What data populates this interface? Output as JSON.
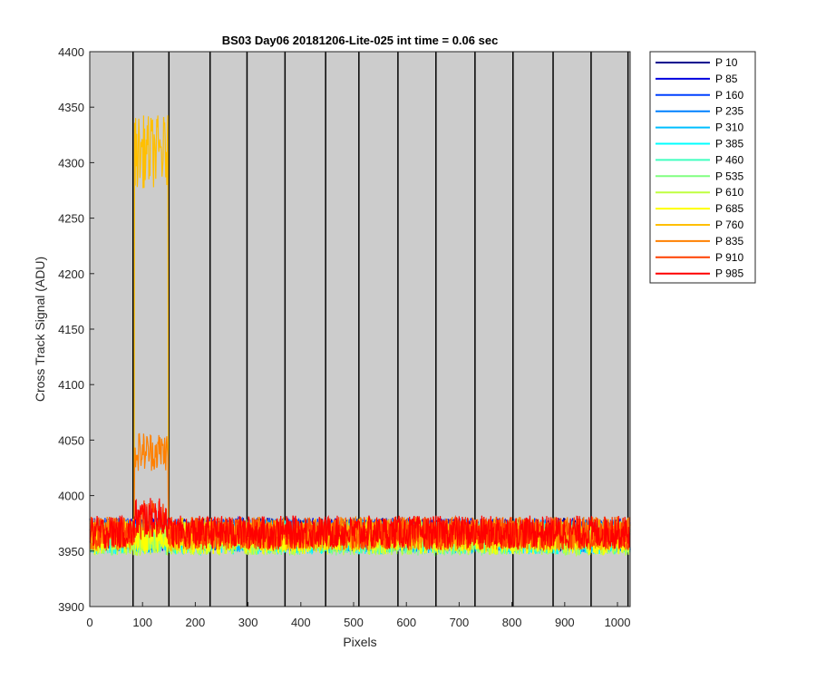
{
  "chart_data": {
    "type": "line",
    "title": "BS03 Day06 20181206-Lite-025 int time = 0.06 sec",
    "xlabel": "Pixels",
    "ylabel": "Cross Track Signal (ADU)",
    "xlim": [
      0,
      1024
    ],
    "ylim": [
      3900,
      4400
    ],
    "xticks": [
      0,
      100,
      200,
      300,
      400,
      500,
      600,
      700,
      800,
      900,
      1000
    ],
    "yticks": [
      3900,
      3950,
      4000,
      4050,
      4100,
      4150,
      4200,
      4250,
      4300,
      4350,
      4400
    ],
    "background": "#cccccc",
    "grid": false,
    "legend_position": "outside-top-right",
    "vertical_lines_x": [
      82,
      150,
      228,
      298,
      370,
      447,
      510,
      584,
      656,
      730,
      802,
      878,
      950,
      1020
    ],
    "baseline": 3965,
    "noise_amplitude": 15,
    "series": [
      {
        "name": "P 10",
        "color": "#00008f",
        "baseline": 3965,
        "plateau": null
      },
      {
        "name": "P 85",
        "color": "#0000df",
        "baseline": 3965,
        "plateau": null
      },
      {
        "name": "P 160",
        "color": "#0040ff",
        "baseline": 3965,
        "plateau": null
      },
      {
        "name": "P 235",
        "color": "#0080ff",
        "baseline": 3964,
        "plateau": null
      },
      {
        "name": "P 310",
        "color": "#00bfff",
        "baseline": 3963,
        "plateau": null
      },
      {
        "name": "P 385",
        "color": "#00ffff",
        "baseline": 3962,
        "plateau": null
      },
      {
        "name": "P 460",
        "color": "#40ffbf",
        "baseline": 3962,
        "plateau": null
      },
      {
        "name": "P 535",
        "color": "#80ff80",
        "baseline": 3961,
        "plateau": null
      },
      {
        "name": "P 610",
        "color": "#bfff40",
        "baseline": 3961,
        "plateau": null
      },
      {
        "name": "P 685",
        "color": "#ffff00",
        "baseline": 3962,
        "plateau": null
      },
      {
        "name": "P 760",
        "color": "#ffbf00",
        "baseline": 3965,
        "plateau": {
          "x": [
            85,
            148
          ],
          "level": 4310
        }
      },
      {
        "name": "P 835",
        "color": "#ff8000",
        "baseline": 3966,
        "plateau": {
          "x": [
            85,
            148
          ],
          "level": 4040
        }
      },
      {
        "name": "P 910",
        "color": "#ff4000",
        "baseline": 3966,
        "plateau": {
          "x": [
            85,
            148
          ],
          "level": 3978
        }
      },
      {
        "name": "P 985",
        "color": "#ff0000",
        "baseline": 3967,
        "plateau": {
          "x": [
            85,
            148
          ],
          "level": 3980
        }
      }
    ]
  }
}
